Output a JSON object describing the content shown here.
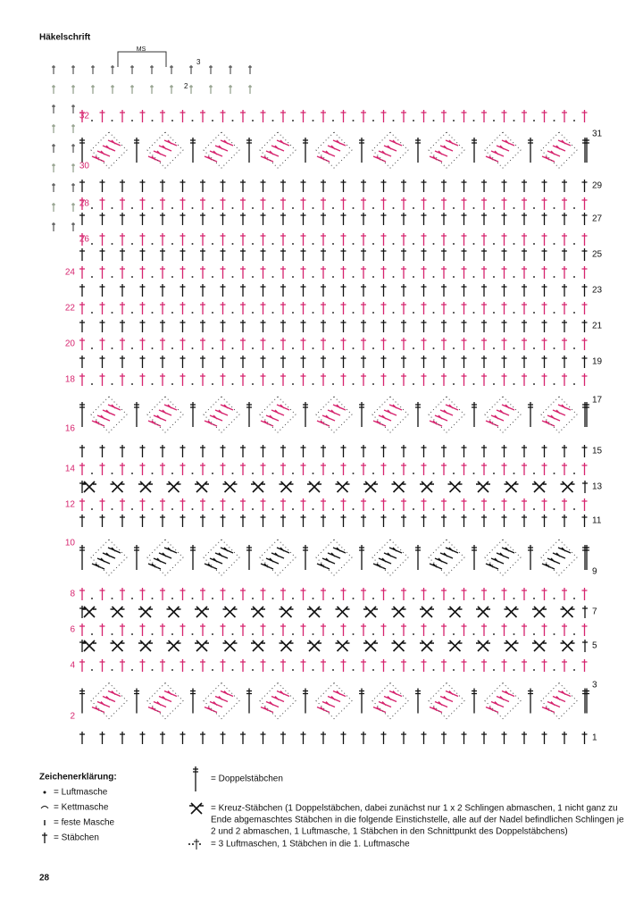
{
  "header": {
    "title": "Häkelschrift",
    "repeat_label": "MS",
    "start_numbers": [
      "3",
      "2"
    ]
  },
  "chart": {
    "row_numbers": [
      "1",
      "2",
      "3",
      "4",
      "5",
      "6",
      "7",
      "8",
      "9",
      "10",
      "11",
      "12",
      "13",
      "14",
      "15",
      "16",
      "17",
      "18",
      "19",
      "20",
      "21",
      "22",
      "23",
      "24",
      "25",
      "26",
      "27",
      "28",
      "29",
      "30",
      "31",
      "32"
    ]
  },
  "legend": {
    "title": "Zeichenerklärung:",
    "items": [
      "= Luftmasche",
      "= Kettmasche",
      "= feste Masche",
      "= Stäbchen"
    ],
    "double": "= Doppelstäbchen",
    "cross": [
      "= Kreuz-Stäbchen (1 Doppelstäbchen, dabei zunächst nur 1 x 2 Schlingen abmaschen, 1 nicht ganz zu",
      "Ende abgemaschtes Stäbchen in die folgende Einstichstelle, alle auf der Nadel befindlichen Schlingen je",
      "2 und 2 abmaschen, 1 Luftmasche, 1 Stäbchen in den Schnittpunkt des Doppelstäbchens)"
    ],
    "chain": "= 3 Luftmaschen, 1 Stäbchen in die 1. Luftmasche"
  },
  "footer": {
    "page": "28"
  }
}
